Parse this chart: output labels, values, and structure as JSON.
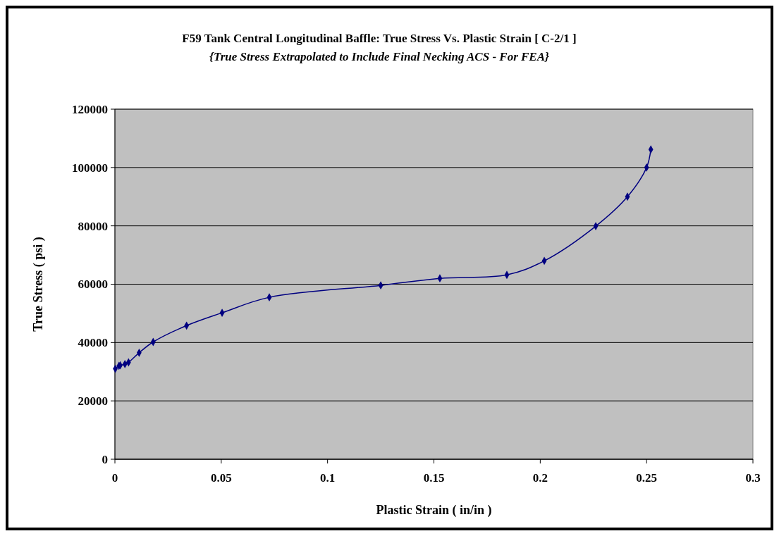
{
  "chart_data": {
    "type": "line",
    "title": "F59 Tank Central Longitudinal Baffle: True Stress Vs. Plastic Strain [ C-2/1 ]",
    "subtitle": "{True Stress Extrapolated to Include Final Necking ACS - For FEA}",
    "xlabel": "Plastic Strain ( in/in )",
    "ylabel": "True Stress ( psi )",
    "x": [
      0.0002,
      0.0019,
      0.0025,
      0.0047,
      0.0064,
      0.0114,
      0.018,
      0.0337,
      0.0504,
      0.0726,
      0.125,
      0.1528,
      0.1843,
      0.2019,
      0.2261,
      0.241,
      0.25,
      0.252
    ],
    "series": [
      {
        "color": "#000080",
        "values": [
          31000,
          32000,
          32200,
          32600,
          33200,
          36500,
          40200,
          45800,
          50200,
          55500,
          59600,
          62000,
          63200,
          68000,
          79900,
          90000,
          100000,
          106200
        ]
      }
    ],
    "xlim": [
      0,
      0.3
    ],
    "xticks": [
      0,
      0.05,
      0.1,
      0.15,
      0.2,
      0.25,
      0.3
    ],
    "ylim": [
      0,
      120000
    ],
    "yticks": [
      0,
      20000,
      40000,
      60000,
      80000,
      100000,
      120000
    ],
    "grid": "y",
    "marker": "diamond",
    "line_style": "solid"
  }
}
